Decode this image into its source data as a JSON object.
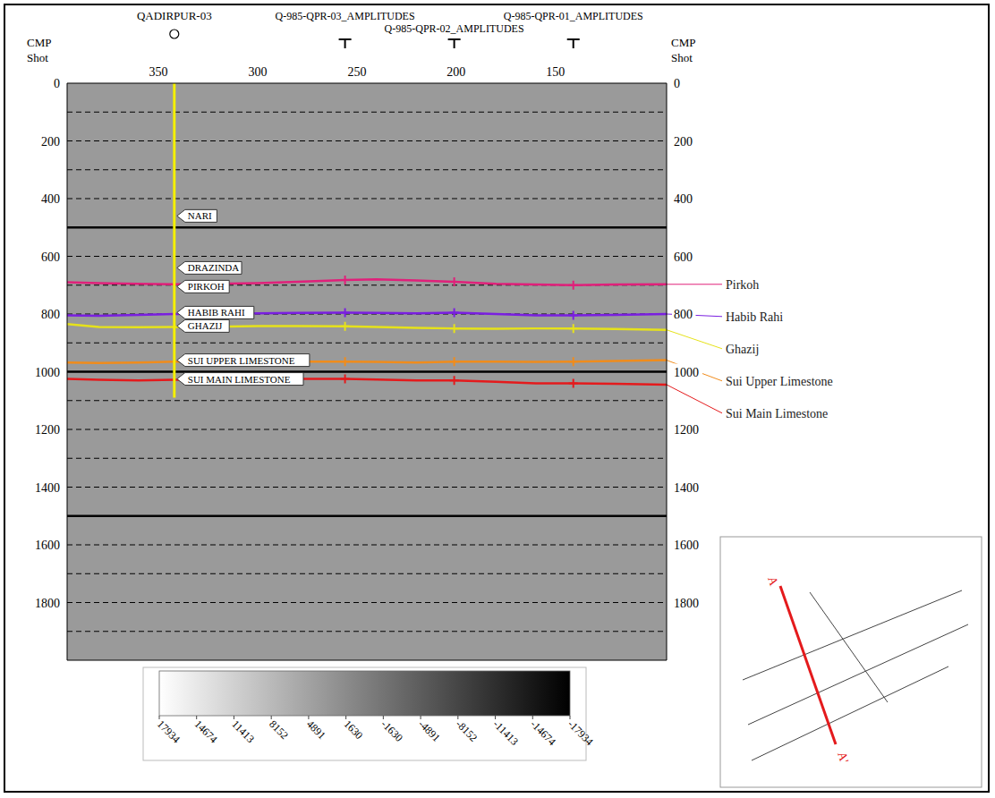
{
  "chart_data": {
    "type": "line",
    "axis_titles": [
      "CMP",
      "Shot"
    ],
    "xlim": [
      396,
      94
    ],
    "xticks": [
      350,
      300,
      250,
      200,
      150
    ],
    "ylim": [
      0,
      2000
    ],
    "yticks": [
      0,
      200,
      400,
      600,
      800,
      1000,
      1200,
      1400,
      1600,
      1800
    ],
    "grid": true,
    "time_lines": [
      100,
      200,
      300,
      400,
      500,
      600,
      700,
      800,
      900,
      1000,
      1100,
      1200,
      1300,
      1400,
      1500,
      1600,
      1700,
      1800,
      1900
    ],
    "heavy_lines": [
      500,
      1000,
      1500
    ],
    "legend": "right",
    "series": [
      {
        "name": "Pirkoh",
        "color": "#e0207a",
        "marker": "cross",
        "x": [
          396,
          380,
          360,
          342,
          320,
          300,
          280,
          256,
          240,
          220,
          201,
          180,
          160,
          141,
          120,
          94
        ],
        "values": [
          690,
          693,
          695,
          697,
          695,
          693,
          688,
          682,
          680,
          684,
          688,
          695,
          698,
          700,
          698,
          697
        ]
      },
      {
        "name": "Habib Rahi",
        "color": "#7a1fe0",
        "marker": "cross",
        "x": [
          396,
          380,
          360,
          342,
          320,
          300,
          280,
          256,
          240,
          220,
          201,
          180,
          160,
          141,
          120,
          94
        ],
        "values": [
          805,
          806,
          803,
          800,
          800,
          798,
          796,
          795,
          796,
          798,
          795,
          800,
          805,
          805,
          803,
          800
        ]
      },
      {
        "name": "Ghazij",
        "color": "#e6e21a",
        "marker": "cross",
        "x": [
          396,
          380,
          360,
          342,
          320,
          300,
          280,
          256,
          240,
          220,
          201,
          180,
          160,
          141,
          120,
          94
        ],
        "values": [
          835,
          845,
          846,
          845,
          844,
          842,
          842,
          843,
          845,
          848,
          850,
          851,
          850,
          850,
          852,
          855
        ]
      },
      {
        "name": "Sui Upper Limestone",
        "color": "#f08c1c",
        "marker": "cross",
        "x": [
          396,
          380,
          360,
          342,
          320,
          300,
          280,
          256,
          240,
          220,
          201,
          180,
          160,
          141,
          120,
          94
        ],
        "values": [
          968,
          970,
          968,
          965,
          965,
          964,
          965,
          965,
          966,
          968,
          965,
          965,
          966,
          965,
          963,
          960
        ]
      },
      {
        "name": "Sui Main Limestone",
        "color": "#e41a1c",
        "marker": "cross",
        "x": [
          396,
          380,
          360,
          342,
          320,
          300,
          280,
          256,
          240,
          220,
          201,
          180,
          160,
          141,
          120,
          94
        ],
        "values": [
          1025,
          1028,
          1030,
          1028,
          1027,
          1026,
          1025,
          1025,
          1027,
          1030,
          1030,
          1035,
          1040,
          1040,
          1042,
          1045
        ]
      }
    ],
    "shot_lines": [
      {
        "name": "Q-985-QPR-03_AMPLITUDES",
        "cmp": 256
      },
      {
        "name": "Q-985-QPR-02_AMPLITUDES",
        "cmp": 201
      },
      {
        "name": "Q-985-QPR-01_AMPLITUDES",
        "cmp": 141
      }
    ],
    "well": {
      "name": "QADIRPUR-03",
      "cmp": 342,
      "track": [
        0,
        1090
      ],
      "color": "#f5f000",
      "tops": [
        {
          "label": "NARI",
          "value": 460
        },
        {
          "label": "DRAZINDA",
          "value": 640
        },
        {
          "label": "PIRKOH",
          "value": 705
        },
        {
          "label": "HABIB RAHI",
          "value": 795
        },
        {
          "label": "GHAZIJ",
          "value": 835
        },
        {
          "label": "SUI UPPER LIMESTONE",
          "value": 960
        },
        {
          "label": "SUI MAIN LIMESTONE",
          "value": 1025
        }
      ]
    },
    "colorbar": {
      "range": [
        17934,
        -17934
      ],
      "colors": [
        "#ffffff",
        "#000000"
      ],
      "ticks": [
        17934,
        14674,
        11413,
        8152,
        4891,
        1630,
        -1630,
        -4891,
        -8152,
        -11413,
        -14674,
        -17934
      ]
    },
    "inset": {
      "labels": [
        "A",
        "A'"
      ],
      "color": "#e41a1c"
    }
  }
}
